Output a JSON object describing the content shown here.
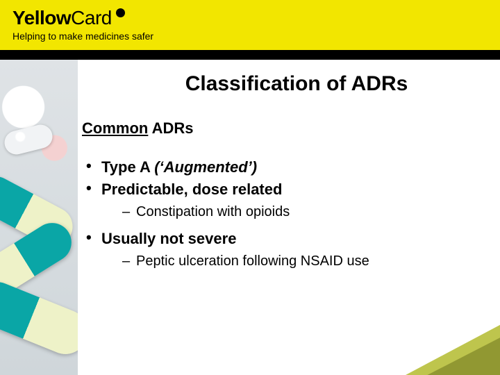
{
  "banner": {
    "brand_bold": "Yellow",
    "brand_light": "Card",
    "tagline": "Helping to make medicines safer",
    "bg_color": "#f2e600",
    "text_color": "#000000"
  },
  "title": "Classification of ADRs",
  "subhead_underlined": "Common",
  "subhead_rest": " ADRs",
  "bullets": {
    "b1_prefix": "Type A ",
    "b1_ital": "(‘Augmented’)",
    "b2": "Predictable, dose related",
    "b2_sub": "Constipation with opioids",
    "b3": "Usually not severe",
    "b3_sub": "Peptic ulceration following NSAID use"
  },
  "style": {
    "title_fontsize": 30,
    "body_fontsize": 22,
    "sub_fontsize": 20,
    "text_color": "#000000",
    "slide_bg": "#ffffff",
    "capsule_teal": "#0aa6a6",
    "capsule_cream": "#eef2c8",
    "corner_olive_light": "#b7bf3a",
    "corner_olive_dark": "#8e9630"
  }
}
